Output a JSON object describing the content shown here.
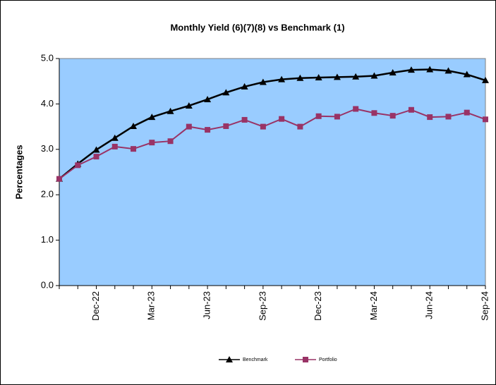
{
  "chart_data": {
    "type": "line",
    "title": "Monthly Yield (6)(7)(8) vs Benchmark (1)",
    "y_label": "Percentages",
    "categories": [
      null,
      null,
      "Dec-22",
      null,
      null,
      "Mar-23",
      null,
      null,
      "Jun-23",
      null,
      null,
      "Sep-23",
      null,
      null,
      "Dec-23",
      null,
      null,
      "Mar-24",
      null,
      null,
      "Jun-24",
      null,
      null,
      "Sep-24"
    ],
    "series": [
      {
        "name": "Benchmark",
        "color": "#000000",
        "marker": "triangle",
        "values": [
          2.35,
          2.68,
          2.99,
          3.25,
          3.51,
          3.71,
          3.84,
          3.96,
          4.1,
          4.25,
          4.38,
          4.48,
          4.54,
          4.57,
          4.58,
          4.59,
          4.6,
          4.62,
          4.69,
          4.75,
          4.76,
          4.73,
          4.65,
          4.52
        ]
      },
      {
        "name": "Portfolio",
        "color": "#993366",
        "marker": "square",
        "values": [
          2.35,
          2.65,
          2.84,
          3.06,
          3.01,
          3.15,
          3.18,
          3.5,
          3.43,
          3.51,
          3.65,
          3.5,
          3.67,
          3.5,
          3.73,
          3.72,
          3.89,
          3.8,
          3.74,
          3.87,
          3.71,
          3.72,
          3.81,
          3.66
        ]
      }
    ],
    "ylim": [
      0,
      5
    ],
    "yticks": [
      {
        "value": 0,
        "label": "0.0"
      },
      {
        "value": 1,
        "label": "1.0"
      },
      {
        "value": 2,
        "label": "2.0"
      },
      {
        "value": 3,
        "label": "3.0"
      },
      {
        "value": 4,
        "label": "4.0"
      },
      {
        "value": 5,
        "label": "5.0"
      }
    ],
    "plot_background": "#99ccff",
    "legend": "bottom"
  }
}
